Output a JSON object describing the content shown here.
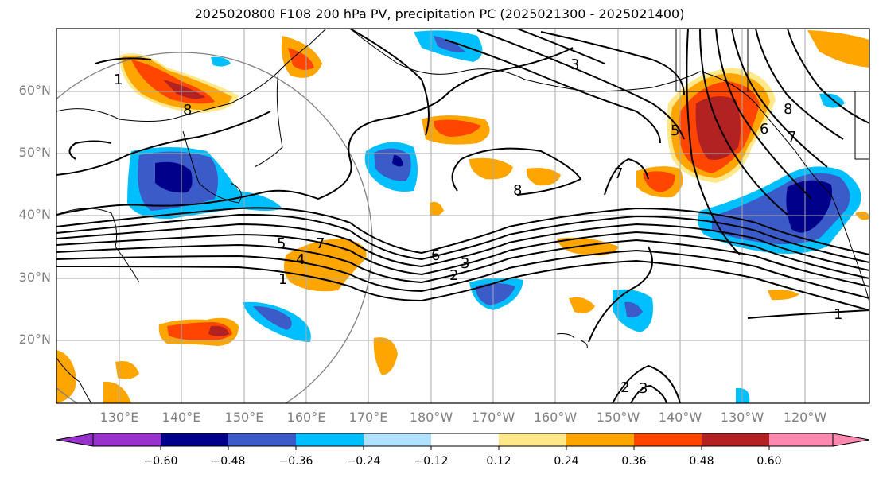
{
  "title": "2025020800 F108 200 hPa PV, precipitation PC (2025021300 - 2025021400)",
  "lat_labels": [
    "60°N",
    "50°N",
    "40°N",
    "30°N",
    "20°N"
  ],
  "lon_labels": [
    "130°E",
    "140°E",
    "150°E",
    "160°E",
    "170°E",
    "180°W",
    "170°W",
    "160°W",
    "150°W",
    "140°W",
    "130°W",
    "120°W"
  ],
  "contour_labels": [
    "1",
    "8",
    "3",
    "5",
    "7",
    "8",
    "6",
    "7",
    "8",
    "5",
    "4",
    "1",
    "6",
    "3",
    "2",
    "1",
    "2",
    "3"
  ],
  "colorbar": {
    "ticks": [
      "−0.60",
      "−0.48",
      "−0.36",
      "−0.24",
      "−0.12",
      "0.12",
      "0.24",
      "0.36",
      "0.48",
      "0.60"
    ],
    "colors": [
      "#9932cc",
      "#00008b",
      "#3a5bc8",
      "#00bfff",
      "#b0e2ff",
      "#ffffff",
      "#ffe88a",
      "#ffa500",
      "#ff4500",
      "#b22222",
      "#ff88b0"
    ]
  },
  "palette": {
    "dark_blue": "#00008b",
    "mid_blue": "#3a5bc8",
    "light_blue": "#00bfff",
    "pale_blue": "#b0e2ff",
    "pale_yellow": "#ffe88a",
    "orange": "#ffa500",
    "red_orange": "#ff4500",
    "dark_red": "#b22222"
  }
}
